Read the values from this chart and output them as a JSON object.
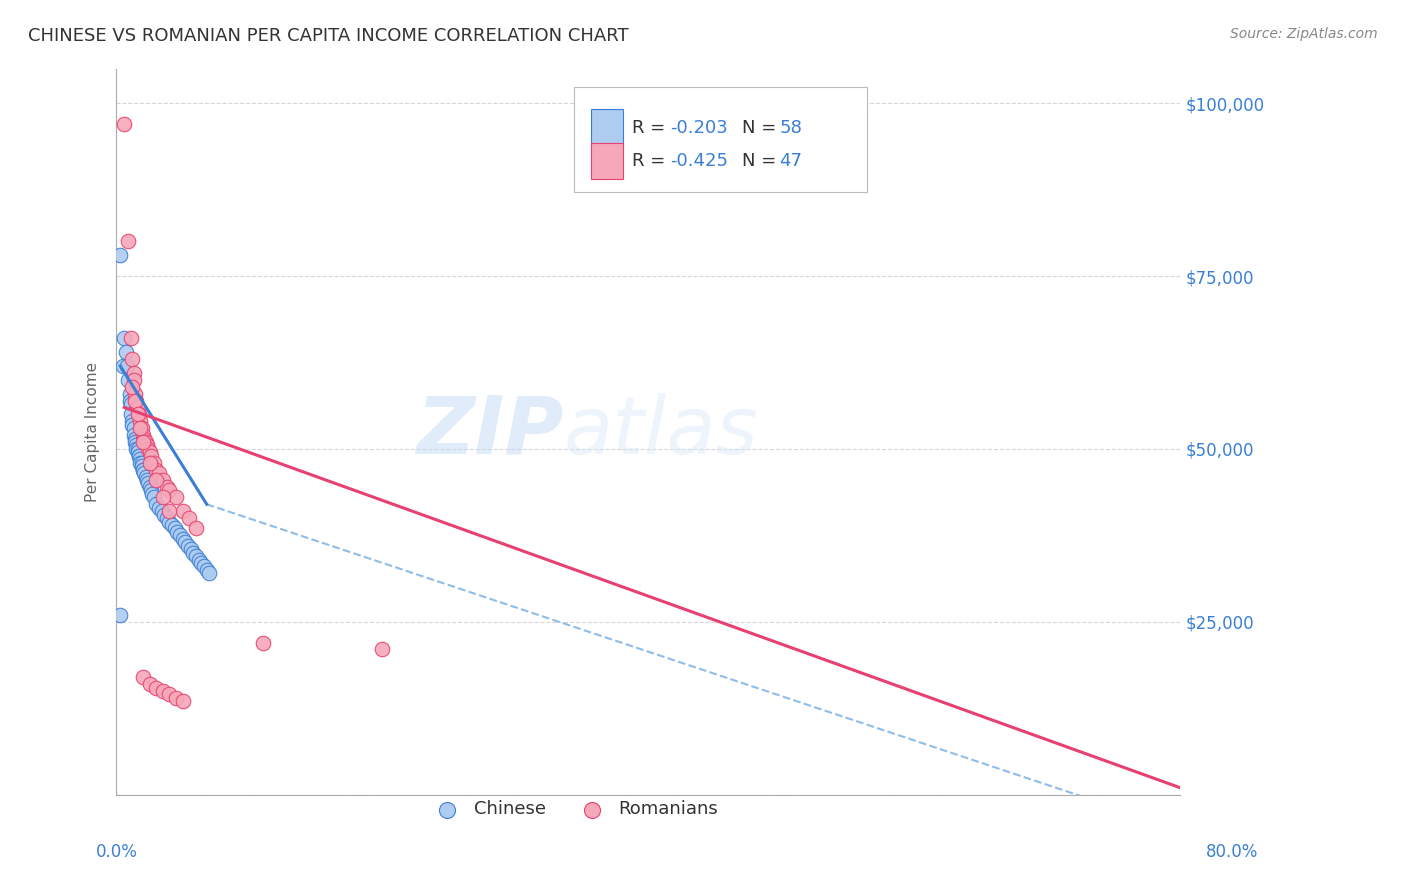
{
  "title": "CHINESE VS ROMANIAN PER CAPITA INCOME CORRELATION CHART",
  "source": "Source: ZipAtlas.com",
  "ylabel": "Per Capita Income",
  "yticks": [
    0,
    25000,
    50000,
    75000,
    100000
  ],
  "ytick_labels": [
    "",
    "$25,000",
    "$50,000",
    "$75,000",
    "$100,000"
  ],
  "xlim": [
    0.0,
    0.8
  ],
  "ylim": [
    0,
    105000
  ],
  "watermark_zip": "ZIP",
  "watermark_atlas": "atlas",
  "legend_r_chinese": "-0.203",
  "legend_n_chinese": "58",
  "legend_r_romanian": "-0.425",
  "legend_n_romanian": "47",
  "chinese_color": "#aecbf0",
  "romanian_color": "#f5a8b8",
  "line_chinese_color": "#3a7fd5",
  "line_romanian_color": "#e84070",
  "dashed_line_color": "#90bce8",
  "title_fontsize": 13,
  "axis_label_color": "#3a7fd5",
  "chinese_scatter_x": [
    0.003,
    0.005,
    0.006,
    0.007,
    0.008,
    0.009,
    0.01,
    0.01,
    0.011,
    0.011,
    0.012,
    0.012,
    0.013,
    0.013,
    0.014,
    0.014,
    0.015,
    0.015,
    0.016,
    0.016,
    0.017,
    0.017,
    0.018,
    0.018,
    0.019,
    0.019,
    0.02,
    0.02,
    0.021,
    0.022,
    0.023,
    0.024,
    0.025,
    0.026,
    0.027,
    0.028,
    0.03,
    0.032,
    0.034,
    0.036,
    0.038,
    0.04,
    0.042,
    0.044,
    0.046,
    0.048,
    0.05,
    0.052,
    0.054,
    0.056,
    0.058,
    0.06,
    0.062,
    0.064,
    0.066,
    0.068,
    0.07,
    0.003
  ],
  "chinese_scatter_y": [
    78000,
    62000,
    66000,
    64000,
    62000,
    60000,
    58000,
    57000,
    56500,
    55000,
    54000,
    53500,
    53000,
    52000,
    51500,
    51000,
    50500,
    50000,
    50000,
    49500,
    49000,
    49000,
    48500,
    48000,
    48000,
    47500,
    47000,
    47000,
    46500,
    46000,
    45500,
    45000,
    44500,
    44000,
    43500,
    43000,
    42000,
    41500,
    41000,
    40500,
    40000,
    39500,
    39000,
    38500,
    38000,
    37500,
    37000,
    36500,
    36000,
    35500,
    35000,
    34500,
    34000,
    33500,
    33000,
    32500,
    32000,
    26000
  ],
  "romanian_scatter_x": [
    0.006,
    0.009,
    0.011,
    0.012,
    0.013,
    0.013,
    0.014,
    0.015,
    0.016,
    0.017,
    0.018,
    0.019,
    0.02,
    0.021,
    0.022,
    0.023,
    0.024,
    0.025,
    0.026,
    0.028,
    0.03,
    0.032,
    0.035,
    0.038,
    0.04,
    0.045,
    0.05,
    0.055,
    0.06,
    0.012,
    0.014,
    0.016,
    0.018,
    0.02,
    0.025,
    0.03,
    0.035,
    0.04,
    0.11,
    0.2,
    0.02,
    0.025,
    0.03,
    0.035,
    0.04,
    0.045,
    0.05
  ],
  "romanian_scatter_y": [
    97000,
    80000,
    66000,
    63000,
    61000,
    60000,
    58000,
    57000,
    56000,
    55000,
    54000,
    53000,
    52000,
    51500,
    51000,
    50500,
    50000,
    49500,
    49000,
    48000,
    47000,
    46500,
    45500,
    44500,
    44000,
    43000,
    41000,
    40000,
    38500,
    59000,
    57000,
    55000,
    53000,
    51000,
    48000,
    45500,
    43000,
    41000,
    22000,
    21000,
    17000,
    16000,
    15500,
    15000,
    14500,
    14000,
    13500
  ],
  "chinese_line_x": [
    0.003,
    0.068
  ],
  "chinese_line_y": [
    62000,
    42000
  ],
  "romanian_line_x": [
    0.006,
    0.8
  ],
  "romanian_line_y": [
    56000,
    1000
  ],
  "dashed_line_x": [
    0.068,
    0.8
  ],
  "dashed_line_y": [
    42000,
    -5000
  ]
}
